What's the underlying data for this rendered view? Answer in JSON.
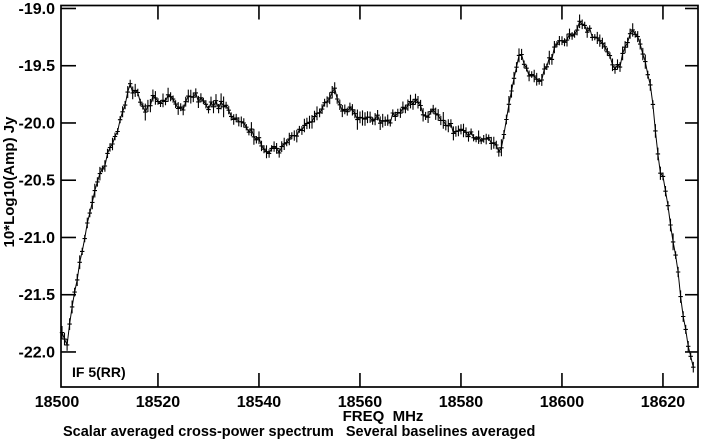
{
  "figure": {
    "if_label": "IF 5(RR)",
    "caption": "Scalar averaged cross-power spectrum   Several baselines averaged"
  },
  "style": {
    "background": "#ffffff",
    "frame_color": "#000000",
    "line_color": "#000000",
    "text_color": "#000000"
  },
  "chart_data": {
    "type": "line",
    "title": "",
    "xlabel": "FREQ  MHz",
    "ylabel": "10*Log10(Amp) Jy",
    "x_unit": "MHz",
    "xlim": [
      18500.8,
      18626.94
    ],
    "ylim": [
      -22.306,
      -18.974
    ],
    "x_ticks": [
      18500,
      18520,
      18540,
      18560,
      18580,
      18600,
      18620
    ],
    "x_tick_labels": [
      "18500",
      "18520",
      "18540",
      "18560",
      "18580",
      "18600",
      "18620"
    ],
    "y_ticks": [
      -19.0,
      -19.5,
      -20.0,
      -20.5,
      -21.0,
      -21.5,
      -22.0
    ],
    "y_tick_labels": [
      "-19.0",
      "-19.5",
      "-20.0",
      "-20.5",
      "-21.0",
      "-21.5",
      "-22.0"
    ],
    "grid": false,
    "legend": "none",
    "marker": "plus-with-vertical-error-bar",
    "channel_step_mhz": 0.5,
    "noise_sigma_db": 0.022,
    "error_bar_half_range_db": [
      0.027,
      0.062
    ],
    "series": [
      {
        "name": "IF 5(RR) scalar-averaged cross-power amplitude",
        "points": [
          [
            18501.0,
            -21.86
          ],
          [
            18501.3,
            -21.93
          ],
          [
            18501.6,
            -21.89
          ],
          [
            18501.9,
            -21.97
          ],
          [
            18502.2,
            -21.9
          ],
          [
            18502.5,
            -21.78
          ],
          [
            18502.9,
            -21.63
          ],
          [
            18503.4,
            -21.5
          ],
          [
            18503.9,
            -21.38
          ],
          [
            18504.5,
            -21.24
          ],
          [
            18505.1,
            -21.08
          ],
          [
            18505.7,
            -20.93
          ],
          [
            18506.3,
            -20.8
          ],
          [
            18507.1,
            -20.66
          ],
          [
            18507.9,
            -20.54
          ],
          [
            18508.7,
            -20.44
          ],
          [
            18509.6,
            -20.33
          ],
          [
            18510.5,
            -20.22
          ],
          [
            18511.5,
            -20.1
          ],
          [
            18512.4,
            -19.99
          ],
          [
            18513.2,
            -19.89
          ],
          [
            18513.8,
            -19.77
          ],
          [
            18514.4,
            -19.67
          ],
          [
            18515.0,
            -19.74
          ],
          [
            18515.6,
            -19.71
          ],
          [
            18516.2,
            -19.78
          ],
          [
            18516.9,
            -19.84
          ],
          [
            18517.5,
            -19.89
          ],
          [
            18518.2,
            -19.82
          ],
          [
            18519.0,
            -19.78
          ],
          [
            18519.8,
            -19.81
          ],
          [
            18520.6,
            -19.85
          ],
          [
            18521.4,
            -19.8
          ],
          [
            18522.2,
            -19.77
          ],
          [
            18523.0,
            -19.8
          ],
          [
            18523.8,
            -19.84
          ],
          [
            18524.6,
            -19.87
          ],
          [
            18525.4,
            -19.81
          ],
          [
            18526.2,
            -19.77
          ],
          [
            18527.0,
            -19.79
          ],
          [
            18527.8,
            -19.77
          ],
          [
            18528.6,
            -19.81
          ],
          [
            18529.4,
            -19.85
          ],
          [
            18530.2,
            -19.87
          ],
          [
            18531.0,
            -19.83
          ],
          [
            18531.8,
            -19.82
          ],
          [
            18532.6,
            -19.85
          ],
          [
            18533.4,
            -19.89
          ],
          [
            18534.4,
            -19.92
          ],
          [
            18535.4,
            -19.96
          ],
          [
            18536.4,
            -19.99
          ],
          [
            18537.4,
            -20.04
          ],
          [
            18538.4,
            -20.08
          ],
          [
            18539.4,
            -20.13
          ],
          [
            18540.4,
            -20.17
          ],
          [
            18541.4,
            -20.21
          ],
          [
            18542.2,
            -20.24
          ],
          [
            18543.0,
            -20.2
          ],
          [
            18543.8,
            -20.24
          ],
          [
            18544.6,
            -20.21
          ],
          [
            18545.4,
            -20.17
          ],
          [
            18546.4,
            -20.13
          ],
          [
            18547.4,
            -20.09
          ],
          [
            18548.4,
            -20.05
          ],
          [
            18549.4,
            -20.02
          ],
          [
            18550.4,
            -19.98
          ],
          [
            18551.4,
            -19.94
          ],
          [
            18552.4,
            -19.89
          ],
          [
            18553.4,
            -19.82
          ],
          [
            18554.2,
            -19.76
          ],
          [
            18554.9,
            -19.72
          ],
          [
            18555.5,
            -19.79
          ],
          [
            18556.1,
            -19.87
          ],
          [
            18556.9,
            -19.92
          ],
          [
            18557.7,
            -19.87
          ],
          [
            18558.5,
            -19.92
          ],
          [
            18559.3,
            -19.96
          ],
          [
            18560.1,
            -19.93
          ],
          [
            18560.9,
            -19.97
          ],
          [
            18561.7,
            -19.94
          ],
          [
            18562.5,
            -19.98
          ],
          [
            18563.3,
            -19.96
          ],
          [
            18564.1,
            -19.99
          ],
          [
            18564.9,
            -19.96
          ],
          [
            18565.7,
            -19.98
          ],
          [
            18566.5,
            -19.95
          ],
          [
            18567.3,
            -19.92
          ],
          [
            18568.2,
            -19.89
          ],
          [
            18569.2,
            -19.86
          ],
          [
            18570.2,
            -19.83
          ],
          [
            18571.3,
            -19.81
          ],
          [
            18572.1,
            -19.86
          ],
          [
            18572.9,
            -19.92
          ],
          [
            18573.7,
            -19.94
          ],
          [
            18574.5,
            -19.9
          ],
          [
            18575.3,
            -19.93
          ],
          [
            18576.1,
            -19.96
          ],
          [
            18577.0,
            -19.99
          ],
          [
            18578.0,
            -20.04
          ],
          [
            18579.0,
            -20.07
          ],
          [
            18580.0,
            -20.06
          ],
          [
            18581.0,
            -20.09
          ],
          [
            18582.0,
            -20.11
          ],
          [
            18583.0,
            -20.13
          ],
          [
            18584.0,
            -20.12
          ],
          [
            18585.0,
            -20.15
          ],
          [
            18586.0,
            -20.16
          ],
          [
            18586.8,
            -20.18
          ],
          [
            18587.6,
            -20.22
          ],
          [
            18588.2,
            -20.15
          ],
          [
            18588.7,
            -20.05
          ],
          [
            18589.2,
            -19.92
          ],
          [
            18589.7,
            -19.8
          ],
          [
            18590.2,
            -19.67
          ],
          [
            18590.8,
            -19.56
          ],
          [
            18591.3,
            -19.46
          ],
          [
            18591.9,
            -19.39
          ],
          [
            18592.5,
            -19.48
          ],
          [
            18593.1,
            -19.56
          ],
          [
            18593.7,
            -19.61
          ],
          [
            18594.3,
            -19.57
          ],
          [
            18594.9,
            -19.63
          ],
          [
            18595.5,
            -19.65
          ],
          [
            18596.1,
            -19.6
          ],
          [
            18596.7,
            -19.55
          ],
          [
            18597.3,
            -19.49
          ],
          [
            18597.9,
            -19.43
          ],
          [
            18598.5,
            -19.36
          ],
          [
            18599.2,
            -19.31
          ],
          [
            18600.0,
            -19.28
          ],
          [
            18600.8,
            -19.26
          ],
          [
            18601.6,
            -19.25
          ],
          [
            18602.3,
            -19.22
          ],
          [
            18602.9,
            -19.17
          ],
          [
            18603.5,
            -19.09
          ],
          [
            18604.1,
            -19.15
          ],
          [
            18604.9,
            -19.19
          ],
          [
            18605.7,
            -19.23
          ],
          [
            18606.5,
            -19.25
          ],
          [
            18607.3,
            -19.28
          ],
          [
            18608.1,
            -19.32
          ],
          [
            18608.9,
            -19.39
          ],
          [
            18609.7,
            -19.46
          ],
          [
            18610.4,
            -19.51
          ],
          [
            18610.9,
            -19.53
          ],
          [
            18611.5,
            -19.47
          ],
          [
            18612.1,
            -19.4
          ],
          [
            18612.8,
            -19.33
          ],
          [
            18613.4,
            -19.26
          ],
          [
            18614.0,
            -19.18
          ],
          [
            18614.7,
            -19.23
          ],
          [
            18615.4,
            -19.3
          ],
          [
            18616.0,
            -19.38
          ],
          [
            18616.6,
            -19.48
          ],
          [
            18617.2,
            -19.6
          ],
          [
            18617.8,
            -19.77
          ],
          [
            18618.3,
            -19.95
          ],
          [
            18618.8,
            -20.2
          ],
          [
            18619.4,
            -20.38
          ],
          [
            18620.1,
            -20.5
          ],
          [
            18620.8,
            -20.65
          ],
          [
            18621.4,
            -20.82
          ],
          [
            18622.0,
            -21.0
          ],
          [
            18622.5,
            -21.15
          ],
          [
            18623.0,
            -21.32
          ],
          [
            18623.5,
            -21.5
          ],
          [
            18624.0,
            -21.66
          ],
          [
            18624.5,
            -21.8
          ],
          [
            18625.0,
            -21.95
          ],
          [
            18625.5,
            -22.05
          ],
          [
            18625.9,
            -22.12
          ],
          [
            18626.2,
            -22.17
          ]
        ]
      }
    ]
  }
}
